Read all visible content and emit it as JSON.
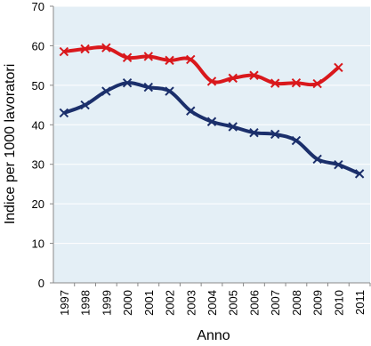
{
  "chart_data": {
    "type": "line",
    "x_label": "Anno",
    "y_label": "Indice per 1000 lavoratori",
    "categories": [
      "1997",
      "1998",
      "1999",
      "2000",
      "2001",
      "2002",
      "2003",
      "2004",
      "2005",
      "2006",
      "2007",
      "2008",
      "2009",
      "2010",
      "2011"
    ],
    "series": [
      {
        "color": "#d9181c",
        "values": [
          58.5,
          59.2,
          59.5,
          57,
          57.3,
          56.3,
          56.5,
          51,
          51.8,
          52.5,
          50.5,
          50.6,
          50.4,
          54.5,
          null
        ]
      },
      {
        "color": "#1b2f6b",
        "values": [
          43,
          45,
          48.5,
          50.6,
          49.5,
          48.5,
          43.5,
          40.8,
          39.5,
          38,
          37.6,
          36,
          31.3,
          29.9,
          27.6
        ]
      }
    ],
    "ylim": [
      0,
      70
    ],
    "yticks": [
      0,
      10,
      20,
      30,
      40,
      50,
      60,
      70
    ],
    "grid": true
  }
}
